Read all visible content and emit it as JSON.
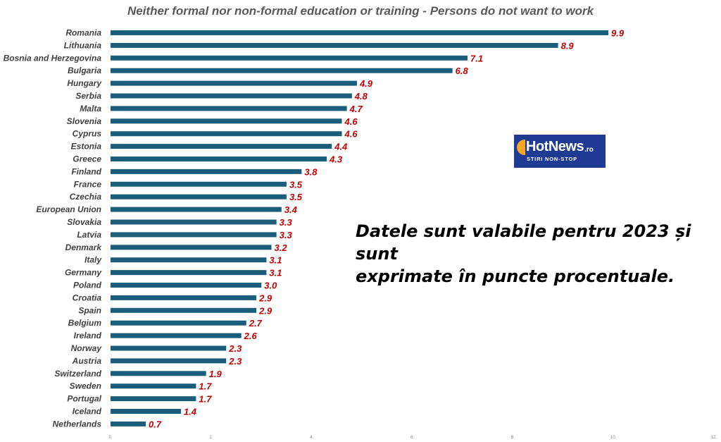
{
  "chart_data": {
    "type": "bar",
    "orientation": "horizontal",
    "title": "Neither formal nor non-formal education or training - Persons do not want to work",
    "categories": [
      "Romania",
      "Lithuania",
      "Bosnia and Herzegovina",
      "Bulgaria",
      "Hungary",
      "Serbia",
      "Malta",
      "Slovenia",
      "Cyprus",
      "Estonia",
      "Greece",
      "Finland",
      "France",
      "Czechia",
      "European Union",
      "Slovakia",
      "Latvia",
      "Denmark",
      "Italy",
      "Germany",
      "Poland",
      "Croatia",
      "Spain",
      "Belgium",
      "Ireland",
      "Norway",
      "Austria",
      "Switzerland",
      "Sweden",
      "Portugal",
      "Iceland",
      "Netherlands"
    ],
    "values": [
      9.9,
      8.9,
      7.1,
      6.8,
      4.9,
      4.8,
      4.7,
      4.6,
      4.6,
      4.4,
      4.3,
      3.8,
      3.5,
      3.5,
      3.4,
      3.3,
      3.3,
      3.2,
      3.1,
      3.1,
      3.0,
      2.9,
      2.9,
      2.7,
      2.6,
      2.3,
      2.3,
      1.9,
      1.7,
      1.7,
      1.4,
      0.7
    ],
    "value_labels": [
      "9.9",
      "8.9",
      "7.1",
      "6.8",
      "4.9",
      "4.8",
      "4.7",
      "4.6",
      "4.6",
      "4.4",
      "4.3",
      "3.8",
      "3.5",
      "3.5",
      "3.4",
      "3.3",
      "3.3",
      "3.2",
      "3.1",
      "3.1",
      "3.0",
      "2.9",
      "2.9",
      "2.7",
      "2.6",
      "2.3",
      "2.3",
      "1.9",
      "1.7",
      "1.7",
      "1.4",
      "0.7"
    ],
    "xlim": [
      0,
      12
    ],
    "xticks": [
      0,
      2,
      4,
      6,
      8,
      10,
      12
    ],
    "xtick_labels": [
      "0.",
      "2.",
      "4.",
      "6.",
      "8.",
      "10.",
      "12."
    ],
    "grid": false,
    "bar_color": "#1b5e7b",
    "label_color": "#c00000"
  },
  "annotation": {
    "line1": "Datele sunt valabile pentru 2023 și sunt",
    "line2": "exprimate în puncte procentuale."
  },
  "logo": {
    "name": "HotNews",
    "suffix": ".ro",
    "tagline": "STIRI NON-STOP"
  }
}
